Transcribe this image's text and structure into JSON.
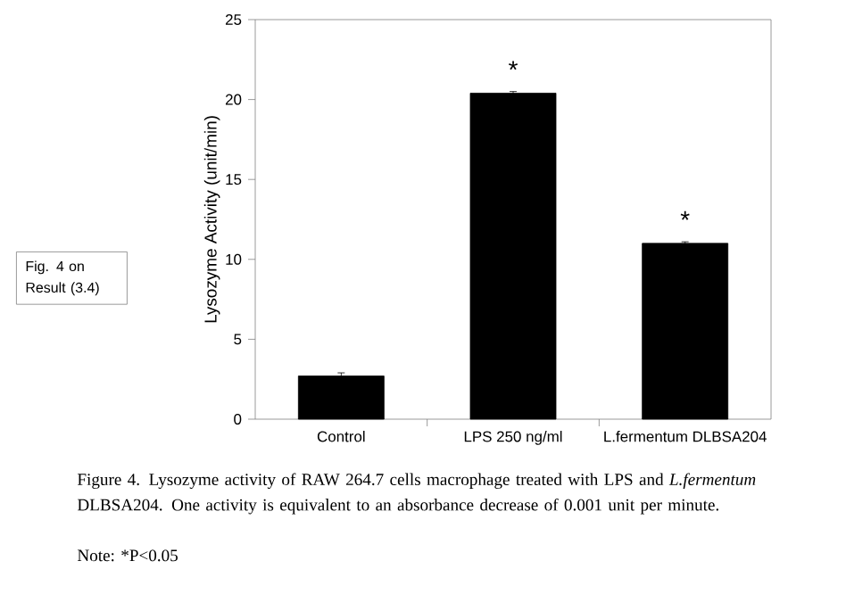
{
  "chart_data": {
    "type": "bar",
    "ylabel": "Lysozyme Activity (unit/min)",
    "categories": [
      "Control",
      "LPS 250 ng/ml",
      "L.fermentum DLBSA204"
    ],
    "values": [
      2.7,
      20.4,
      11.0
    ],
    "errors": [
      0.2,
      0.1,
      0.1
    ],
    "color": "#000000",
    "ylim": [
      0,
      25
    ],
    "yticks": [
      0,
      5,
      10,
      15,
      20,
      25
    ],
    "grid": false,
    "annotations": [
      "Fig. 4 on Result (3.4)",
      "Figure 4. Lysozyme activity of RAW 264.7 cells macrophage treated with LPS and *L.fermentum* DLBSA204. One activity is equivalent to an absorbance decrease of 0.001 unit per minute.",
      "Note: *P<0.05",
      "*",
      "*"
    ]
  }
}
